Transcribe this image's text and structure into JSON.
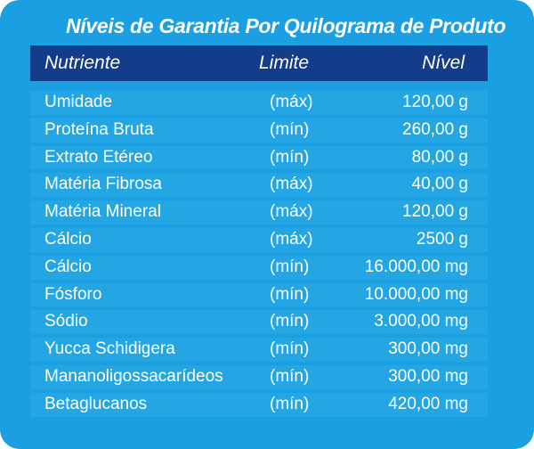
{
  "table": {
    "title": "Níveis de Garantia Por Quilograma de Produto",
    "headers": {
      "nutrient": "Nutriente",
      "limit": "Limite",
      "level": "Nível"
    },
    "rows": [
      {
        "nutrient": "Umidade",
        "limit": "(máx)",
        "level": "120,00 g"
      },
      {
        "nutrient": "Proteína Bruta",
        "limit": "(mín)",
        "level": "260,00 g"
      },
      {
        "nutrient": "Extrato Etéreo",
        "limit": "(mín)",
        "level": "80,00 g"
      },
      {
        "nutrient": "Matéria Fibrosa",
        "limit": "(máx)",
        "level": "40,00 g"
      },
      {
        "nutrient": "Matéria Mineral",
        "limit": "(máx)",
        "level": "120,00 g"
      },
      {
        "nutrient": "Cálcio",
        "limit": "(máx)",
        "level": "2500 g"
      },
      {
        "nutrient": "Cálcio",
        "limit": "(mín)",
        "level": "16.000,00 mg"
      },
      {
        "nutrient": "Fósforo",
        "limit": "(mín)",
        "level": "10.000,00 mg"
      },
      {
        "nutrient": "Sódio",
        "limit": "(mín)",
        "level": "3.000,00 mg"
      },
      {
        "nutrient": "Yucca Schidigera",
        "limit": "(mín)",
        "level": "300,00 mg"
      },
      {
        "nutrient": "Mananoligossacarídeos",
        "limit": "(mín)",
        "level": "300,00 mg"
      },
      {
        "nutrient": "Betaglucanos",
        "limit": "(mín)",
        "level": "420,00 mg"
      }
    ]
  },
  "colors": {
    "background": "#1aa0e2",
    "header": "#133d8a",
    "row_shade": "#2eabe7",
    "text": "#ffffff"
  }
}
